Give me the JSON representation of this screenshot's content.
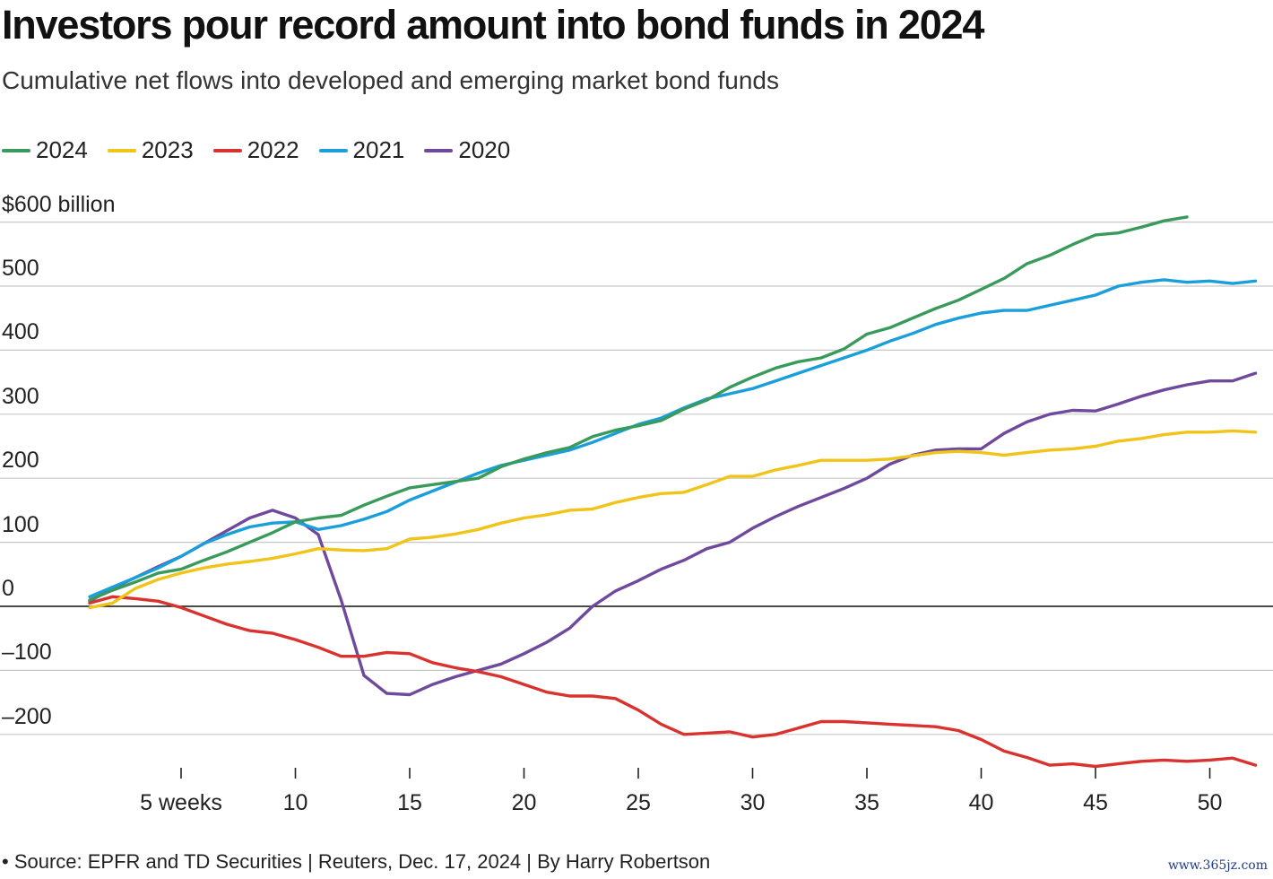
{
  "header": {
    "title": "Investors pour record amount into bond funds in 2024",
    "subtitle": "Cumulative net flows into developed and emerging market bond funds"
  },
  "footer": {
    "source": "• Source: EPFR and TD Securities | Reuters, Dec. 17, 2024 | By Harry Robertson",
    "watermark": "www.365jz.com"
  },
  "chart_data": {
    "type": "line",
    "title": "Investors pour record amount into bond funds in 2024",
    "subtitle": "Cumulative net flows into developed and emerging market bond funds",
    "xlabel": "",
    "ylabel": "",
    "xlim": [
      1,
      52
    ],
    "ylim": [
      -250,
      600
    ],
    "grid": true,
    "legend_position": "top-left",
    "y_ticks": [
      600,
      500,
      400,
      300,
      200,
      100,
      0,
      -100,
      -200
    ],
    "y_tick_labels": [
      "$600 billion",
      "500",
      "400",
      "300",
      "200",
      "100",
      "0",
      "–100",
      "–200"
    ],
    "x_ticks": [
      5,
      10,
      15,
      20,
      25,
      30,
      35,
      40,
      45,
      50
    ],
    "x_tick_labels": [
      "5 weeks",
      "10",
      "15",
      "20",
      "25",
      "30",
      "35",
      "40",
      "45",
      "50"
    ],
    "series": [
      {
        "name": "2024",
        "color": "#3a9a5b",
        "x": [
          1,
          2,
          3,
          4,
          5,
          6,
          7,
          8,
          9,
          10,
          11,
          12,
          13,
          14,
          15,
          16,
          17,
          18,
          19,
          20,
          21,
          22,
          23,
          24,
          25,
          26,
          27,
          28,
          29,
          30,
          31,
          32,
          33,
          34,
          35,
          36,
          37,
          38,
          39,
          40,
          41,
          42,
          43,
          44,
          45,
          46,
          47,
          48,
          49
        ],
        "values": [
          10,
          25,
          38,
          52,
          58,
          72,
          85,
          100,
          115,
          132,
          138,
          142,
          158,
          172,
          185,
          190,
          195,
          200,
          218,
          230,
          240,
          248,
          265,
          275,
          282,
          290,
          308,
          322,
          342,
          358,
          372,
          382,
          388,
          402,
          425,
          435,
          450,
          465,
          478,
          495,
          512,
          535,
          548,
          565,
          580,
          583,
          592,
          602,
          608
        ]
      },
      {
        "name": "2023",
        "color": "#f0c419",
        "x": [
          1,
          2,
          3,
          4,
          5,
          6,
          7,
          8,
          9,
          10,
          11,
          12,
          13,
          14,
          15,
          16,
          17,
          18,
          19,
          20,
          21,
          22,
          23,
          24,
          25,
          26,
          27,
          28,
          29,
          30,
          31,
          32,
          33,
          34,
          35,
          36,
          37,
          38,
          39,
          40,
          41,
          42,
          43,
          44,
          45,
          46,
          47,
          48,
          49,
          50,
          51,
          52
        ],
        "values": [
          -2,
          5,
          28,
          42,
          52,
          60,
          66,
          70,
          75,
          82,
          90,
          88,
          87,
          90,
          105,
          108,
          113,
          120,
          130,
          138,
          143,
          150,
          152,
          162,
          170,
          176,
          178,
          190,
          203,
          203,
          213,
          220,
          228,
          228,
          228,
          230,
          235,
          240,
          242,
          240,
          236,
          240,
          244,
          246,
          250,
          258,
          262,
          268,
          272,
          272,
          274,
          272
        ]
      },
      {
        "name": "2022",
        "color": "#d8332e",
        "x": [
          1,
          2,
          3,
          4,
          5,
          6,
          7,
          8,
          9,
          10,
          11,
          12,
          13,
          14,
          15,
          16,
          17,
          18,
          19,
          20,
          21,
          22,
          23,
          24,
          25,
          26,
          27,
          28,
          29,
          30,
          31,
          32,
          33,
          34,
          35,
          36,
          37,
          38,
          39,
          40,
          41,
          42,
          43,
          44,
          45,
          46,
          47,
          48,
          49,
          50,
          51,
          52
        ],
        "values": [
          5,
          15,
          12,
          8,
          -2,
          -15,
          -28,
          -38,
          -42,
          -52,
          -64,
          -78,
          -78,
          -72,
          -74,
          -88,
          -96,
          -102,
          -110,
          -122,
          -134,
          -140,
          -140,
          -144,
          -162,
          -184,
          -200,
          -198,
          -196,
          -204,
          -200,
          -190,
          -180,
          -180,
          -182,
          -184,
          -186,
          -188,
          -194,
          -208,
          -226,
          -236,
          -248,
          -246,
          -250,
          -246,
          -242,
          -240,
          -242,
          -240,
          -237,
          -248
        ]
      },
      {
        "name": "2021",
        "color": "#1a9fdb",
        "x": [
          1,
          2,
          3,
          4,
          5,
          6,
          7,
          8,
          9,
          10,
          11,
          12,
          13,
          14,
          15,
          16,
          17,
          18,
          19,
          20,
          21,
          22,
          23,
          24,
          25,
          26,
          27,
          28,
          29,
          30,
          31,
          32,
          33,
          34,
          35,
          36,
          37,
          38,
          39,
          40,
          41,
          42,
          43,
          44,
          45,
          46,
          47,
          48,
          49,
          50,
          51,
          52
        ],
        "values": [
          15,
          30,
          45,
          60,
          78,
          98,
          112,
          124,
          130,
          132,
          120,
          126,
          136,
          148,
          166,
          180,
          194,
          208,
          220,
          228,
          236,
          244,
          256,
          270,
          284,
          294,
          310,
          324,
          332,
          340,
          352,
          364,
          376,
          388,
          400,
          414,
          426,
          440,
          450,
          458,
          462,
          462,
          470,
          478,
          486,
          500,
          506,
          510,
          506,
          508,
          504,
          508
        ]
      },
      {
        "name": "2020",
        "color": "#6f4a9c",
        "x": [
          1,
          2,
          3,
          4,
          5,
          6,
          7,
          8,
          9,
          10,
          11,
          12,
          13,
          14,
          15,
          16,
          17,
          18,
          19,
          20,
          21,
          22,
          23,
          24,
          25,
          26,
          27,
          28,
          29,
          30,
          31,
          32,
          33,
          34,
          35,
          36,
          37,
          38,
          39,
          40,
          41,
          42,
          43,
          44,
          45,
          46,
          47,
          48,
          49,
          50,
          51,
          52
        ],
        "values": [
          8,
          28,
          45,
          62,
          78,
          98,
          118,
          138,
          150,
          138,
          112,
          10,
          -108,
          -136,
          -138,
          -122,
          -110,
          -100,
          -90,
          -74,
          -56,
          -34,
          0,
          24,
          40,
          58,
          72,
          90,
          100,
          122,
          140,
          156,
          170,
          184,
          200,
          222,
          236,
          244,
          246,
          246,
          270,
          288,
          300,
          306,
          305,
          316,
          328,
          338,
          346,
          352,
          352,
          364
        ]
      }
    ]
  }
}
